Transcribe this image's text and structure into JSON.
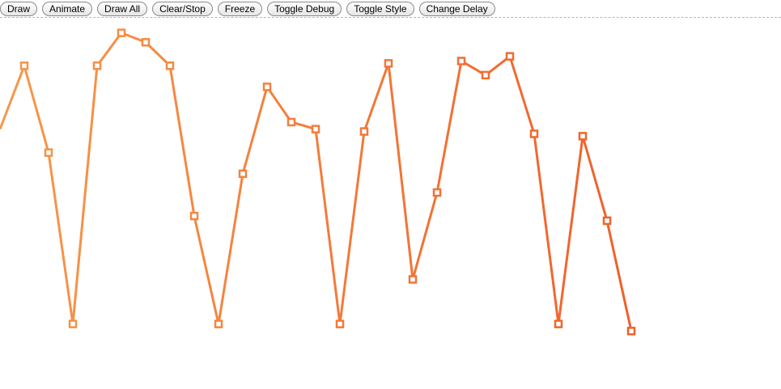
{
  "toolbar": {
    "buttons": [
      "Draw",
      "Animate",
      "Draw All",
      "Clear/Stop",
      "Freeze",
      "Toggle Debug",
      "Toggle Style",
      "Change Delay"
    ]
  },
  "colors": {
    "line_start": "#f7984a",
    "line_end": "#f0602a"
  },
  "chart_data": {
    "type": "line",
    "grid": false,
    "legend": "none",
    "marker": "square",
    "x": [
      0,
      1,
      2,
      3,
      4,
      5,
      6,
      7,
      8,
      9,
      10,
      11,
      12,
      13,
      14,
      15,
      16,
      17,
      18,
      19,
      20,
      21,
      22,
      23,
      24,
      25,
      26
    ],
    "values": [
      0.45,
      0.72,
      0.35,
      -0.38,
      0.72,
      0.86,
      0.82,
      0.72,
      0.08,
      -0.38,
      0.26,
      0.63,
      0.48,
      0.45,
      -0.38,
      0.44,
      0.73,
      -0.19,
      0.18,
      0.74,
      0.68,
      0.76,
      0.43,
      -0.38,
      0.42,
      0.06,
      -0.41
    ],
    "ylim": [
      -0.55,
      1.0
    ]
  }
}
